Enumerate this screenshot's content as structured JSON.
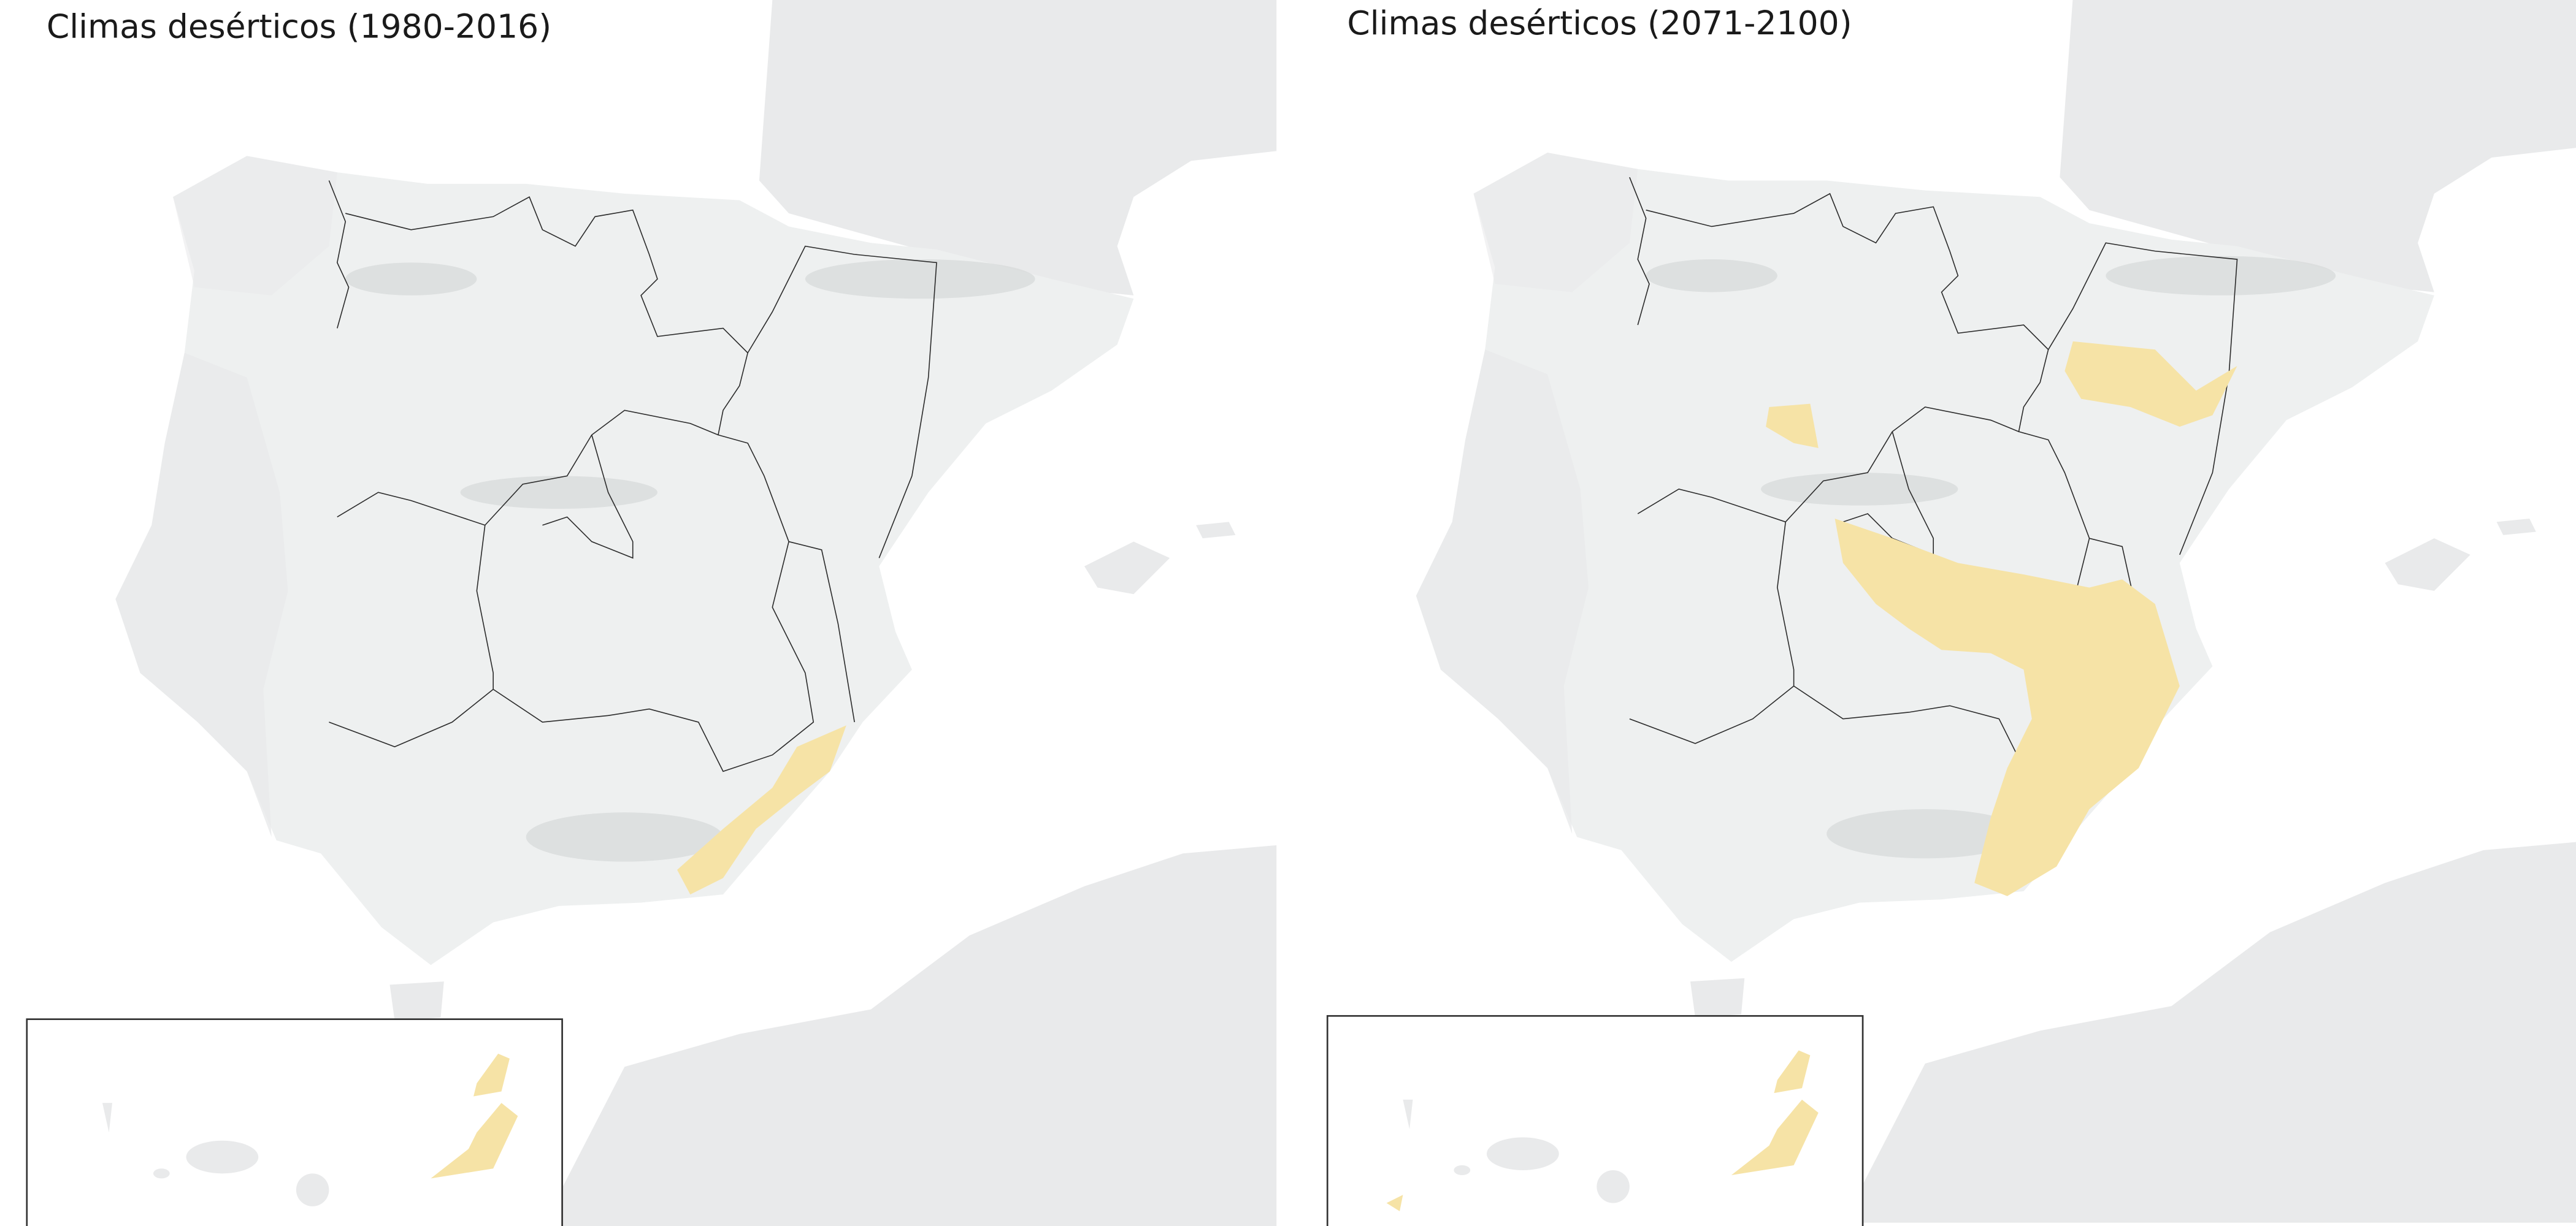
{
  "panels": [
    {
      "title": "Climas desérticos (1980-2016)"
    },
    {
      "title": "Climas desérticos (2071-2100)"
    }
  ]
}
